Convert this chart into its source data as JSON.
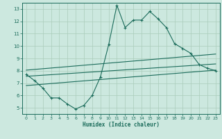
{
  "bg_color": "#cce8df",
  "line_color": "#1a6b5a",
  "grid_color": "#aaccbb",
  "xlabel": "Humidex (Indice chaleur)",
  "xlim": [
    -0.5,
    23.5
  ],
  "ylim": [
    4.5,
    13.5
  ],
  "yticks": [
    5,
    6,
    7,
    8,
    9,
    10,
    11,
    12,
    13
  ],
  "xticks": [
    0,
    1,
    2,
    3,
    4,
    5,
    6,
    7,
    8,
    9,
    10,
    11,
    12,
    13,
    14,
    15,
    16,
    17,
    18,
    19,
    20,
    21,
    22,
    23
  ],
  "main_line_x": [
    0,
    1,
    2,
    3,
    4,
    5,
    6,
    7,
    8,
    9,
    10,
    11,
    12,
    13,
    14,
    15,
    16,
    17,
    18,
    19,
    20,
    21,
    22,
    23
  ],
  "main_line_y": [
    7.7,
    7.2,
    6.6,
    5.8,
    5.8,
    5.3,
    4.9,
    5.2,
    6.0,
    7.5,
    10.1,
    13.3,
    11.5,
    12.1,
    12.1,
    12.8,
    12.2,
    11.5,
    10.2,
    9.8,
    9.4,
    8.5,
    8.2,
    8.0
  ],
  "upper_line_x": [
    0,
    23
  ],
  "upper_line_y": [
    8.05,
    9.35
  ],
  "mid_line_x": [
    0,
    23
  ],
  "mid_line_y": [
    7.55,
    8.55
  ],
  "lower_line_x": [
    0,
    23
  ],
  "lower_line_y": [
    6.8,
    8.05
  ]
}
